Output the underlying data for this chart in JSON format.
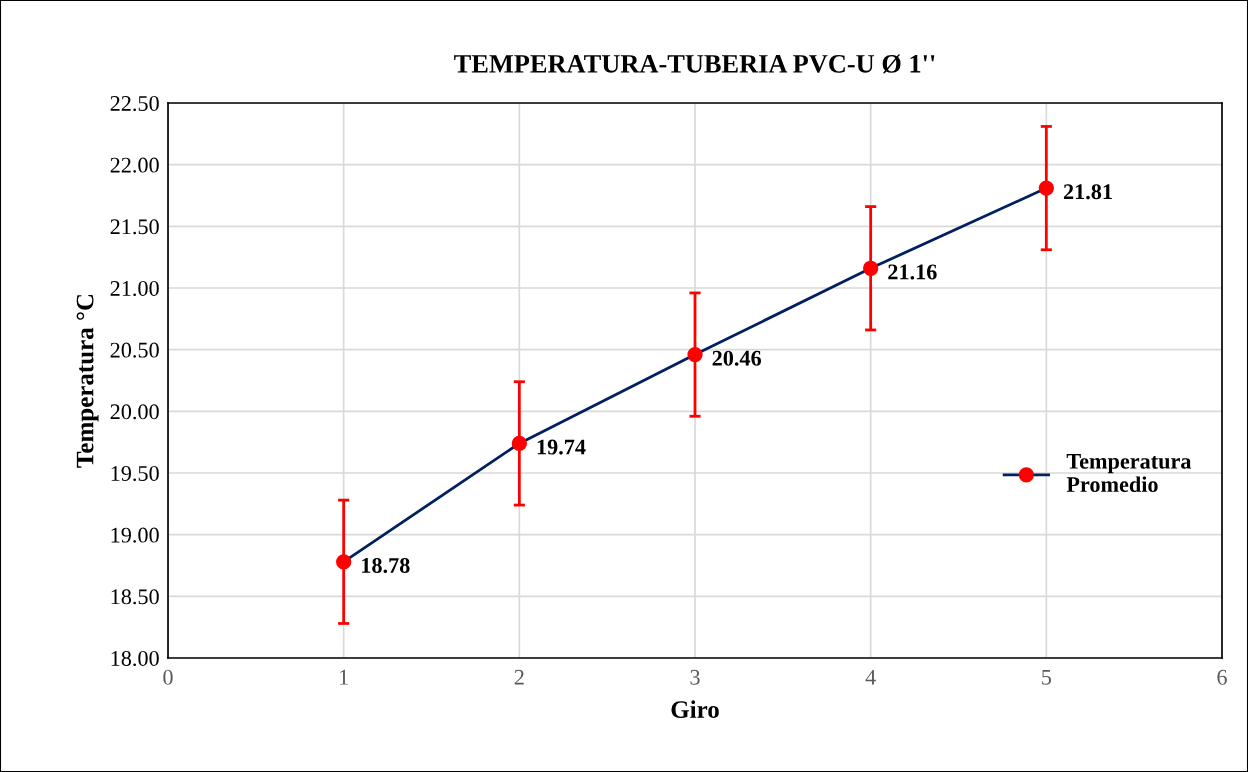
{
  "chart_data": {
    "type": "line",
    "title": "TEMPERATURA-TUBERIA PVC-U Ø 1''",
    "xlabel": "Giro",
    "ylabel": "Temperatura °C",
    "x": [
      1,
      2,
      3,
      4,
      5
    ],
    "series": [
      {
        "name": "Temperatura\nPromedio",
        "color": "#002060",
        "colors": [
          "#ff0000",
          "#ff0000",
          "#ff0000",
          "#ff0000",
          "#ff0000"
        ],
        "values": [
          18.78,
          19.74,
          20.46,
          21.16,
          21.81
        ],
        "errors": [
          0.5,
          0.5,
          0.5,
          0.5,
          0.5
        ]
      }
    ],
    "xlim": [
      0,
      6
    ],
    "xticks": [
      0,
      1,
      2,
      3,
      4,
      5,
      6
    ],
    "ylim": [
      18,
      22.5
    ],
    "yticks": [
      {
        "value": 18,
        "label": "18.00"
      },
      {
        "value": 18.5,
        "label": "18.50"
      },
      {
        "value": 19,
        "label": "19.00"
      },
      {
        "value": 19.5,
        "label": "19.50"
      },
      {
        "value": 20,
        "label": "20.00"
      },
      {
        "value": 20.5,
        "label": "20.50"
      },
      {
        "value": 21,
        "label": "21.00"
      },
      {
        "value": 21.5,
        "label": "21.50"
      },
      {
        "value": 22,
        "label": "22.00"
      },
      {
        "value": 22.5,
        "label": "22.50"
      }
    ],
    "grid": true,
    "legend": "right",
    "marker": "circle",
    "line_style": "solid",
    "data_labels": true
  }
}
